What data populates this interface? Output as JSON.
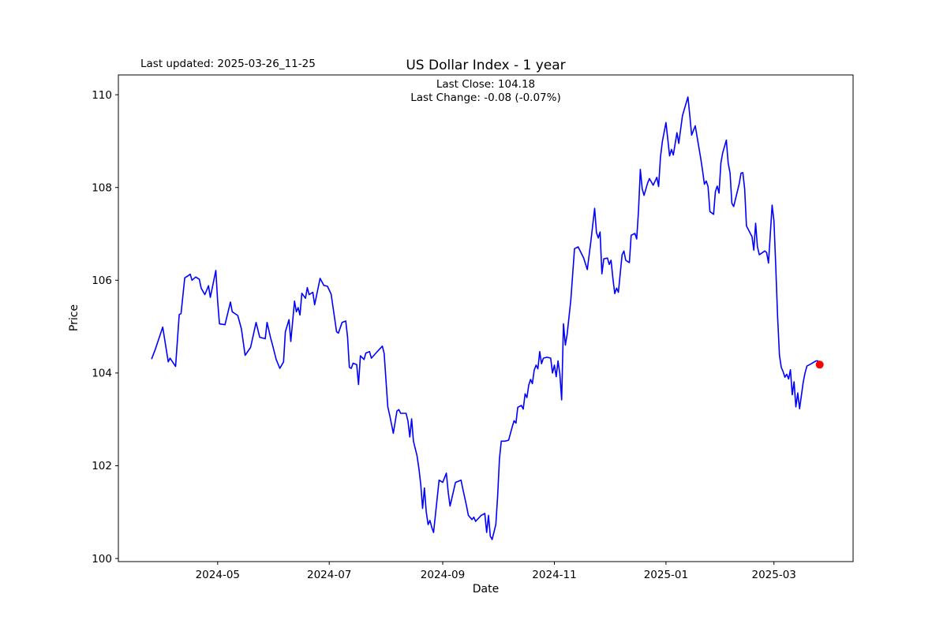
{
  "chart_data": {
    "type": "line",
    "title": "US Dollar Index - 1 year",
    "annotation_top_left": "Last updated: 2025-03-26_11-25",
    "subtitle_lines": [
      "Last Close: 104.18",
      "Last Change: -0.08 (-0.07%)"
    ],
    "last_close": 104.18,
    "last_change": "-0.08 (-0.07%)",
    "xlabel": "Date",
    "ylabel": "Price",
    "ylim_ticks": [
      100,
      110
    ],
    "grid": false,
    "legend": "none",
    "line_color": "#0000ff",
    "marker_color": "#ff0000",
    "yticks": [
      100,
      102,
      104,
      106,
      108,
      110
    ],
    "xticks": [
      {
        "date": "2024-05-01",
        "label": "2024-05"
      },
      {
        "date": "2024-07-01",
        "label": "2024-07"
      },
      {
        "date": "2024-09-01",
        "label": "2024-09"
      },
      {
        "date": "2024-11-01",
        "label": "2024-11"
      },
      {
        "date": "2025-01-01",
        "label": "2025-01"
      },
      {
        "date": "2025-03-01",
        "label": "2025-03"
      }
    ],
    "series": [
      {
        "name": "US Dollar Index",
        "points": [
          [
            "2024-03-26",
            104.31
          ],
          [
            "2024-03-28",
            104.52
          ],
          [
            "2024-04-01",
            104.99
          ],
          [
            "2024-04-04",
            104.24
          ],
          [
            "2024-04-05",
            104.32
          ],
          [
            "2024-04-08",
            104.14
          ],
          [
            "2024-04-10",
            105.26
          ],
          [
            "2024-04-11",
            105.28
          ],
          [
            "2024-04-13",
            106.05
          ],
          [
            "2024-04-15",
            106.1
          ],
          [
            "2024-04-16",
            106.13
          ],
          [
            "2024-04-17",
            106.0
          ],
          [
            "2024-04-19",
            106.07
          ],
          [
            "2024-04-21",
            106.02
          ],
          [
            "2024-04-22",
            105.83
          ],
          [
            "2024-04-24",
            105.69
          ],
          [
            "2024-04-26",
            105.88
          ],
          [
            "2024-04-27",
            105.63
          ],
          [
            "2024-04-30",
            106.21
          ],
          [
            "2024-05-01",
            105.55
          ],
          [
            "2024-05-02",
            105.06
          ],
          [
            "2024-05-05",
            105.04
          ],
          [
            "2024-05-08",
            105.53
          ],
          [
            "2024-05-09",
            105.32
          ],
          [
            "2024-05-12",
            105.24
          ],
          [
            "2024-05-14",
            104.95
          ],
          [
            "2024-05-16",
            104.38
          ],
          [
            "2024-05-19",
            104.55
          ],
          [
            "2024-05-22",
            105.09
          ],
          [
            "2024-05-24",
            104.77
          ],
          [
            "2024-05-27",
            104.74
          ],
          [
            "2024-05-28",
            105.09
          ],
          [
            "2024-05-30",
            104.75
          ],
          [
            "2024-05-31",
            104.6
          ],
          [
            "2024-06-02",
            104.29
          ],
          [
            "2024-06-04",
            104.1
          ],
          [
            "2024-06-06",
            104.24
          ],
          [
            "2024-06-07",
            104.89
          ],
          [
            "2024-06-09",
            105.15
          ],
          [
            "2024-06-10",
            104.68
          ],
          [
            "2024-06-12",
            105.55
          ],
          [
            "2024-06-13",
            105.32
          ],
          [
            "2024-06-14",
            105.41
          ],
          [
            "2024-06-15",
            105.25
          ],
          [
            "2024-06-16",
            105.72
          ],
          [
            "2024-06-18",
            105.61
          ],
          [
            "2024-06-19",
            105.84
          ],
          [
            "2024-06-20",
            105.69
          ],
          [
            "2024-06-22",
            105.74
          ],
          [
            "2024-06-23",
            105.47
          ],
          [
            "2024-06-26",
            106.04
          ],
          [
            "2024-06-28",
            105.89
          ],
          [
            "2024-06-30",
            105.87
          ],
          [
            "2024-07-02",
            105.7
          ],
          [
            "2024-07-05",
            104.89
          ],
          [
            "2024-07-06",
            104.86
          ],
          [
            "2024-07-08",
            105.09
          ],
          [
            "2024-07-10",
            105.12
          ],
          [
            "2024-07-11",
            104.78
          ],
          [
            "2024-07-12",
            104.12
          ],
          [
            "2024-07-13",
            104.1
          ],
          [
            "2024-07-14",
            104.21
          ],
          [
            "2024-07-16",
            104.18
          ],
          [
            "2024-07-17",
            103.75
          ],
          [
            "2024-07-18",
            104.37
          ],
          [
            "2024-07-20",
            104.29
          ],
          [
            "2024-07-21",
            104.43
          ],
          [
            "2024-07-23",
            104.46
          ],
          [
            "2024-07-24",
            104.32
          ],
          [
            "2024-07-27",
            104.45
          ],
          [
            "2024-07-30",
            104.58
          ],
          [
            "2024-07-31",
            104.42
          ],
          [
            "2024-08-02",
            103.27
          ],
          [
            "2024-08-03",
            103.09
          ],
          [
            "2024-08-05",
            102.7
          ],
          [
            "2024-08-07",
            103.18
          ],
          [
            "2024-08-08",
            103.21
          ],
          [
            "2024-08-09",
            103.13
          ],
          [
            "2024-08-12",
            103.13
          ],
          [
            "2024-08-13",
            102.96
          ],
          [
            "2024-08-14",
            102.62
          ],
          [
            "2024-08-15",
            103.01
          ],
          [
            "2024-08-16",
            102.53
          ],
          [
            "2024-08-18",
            102.21
          ],
          [
            "2024-08-19",
            101.93
          ],
          [
            "2024-08-20",
            101.59
          ],
          [
            "2024-08-21",
            101.08
          ],
          [
            "2024-08-22",
            101.52
          ],
          [
            "2024-08-23",
            101.01
          ],
          [
            "2024-08-24",
            100.73
          ],
          [
            "2024-08-25",
            100.82
          ],
          [
            "2024-08-26",
            100.67
          ],
          [
            "2024-08-27",
            100.56
          ],
          [
            "2024-08-30",
            101.69
          ],
          [
            "2024-09-01",
            101.64
          ],
          [
            "2024-09-03",
            101.84
          ],
          [
            "2024-09-04",
            101.42
          ],
          [
            "2024-09-05",
            101.13
          ],
          [
            "2024-09-06",
            101.3
          ],
          [
            "2024-09-08",
            101.64
          ],
          [
            "2024-09-11",
            101.69
          ],
          [
            "2024-09-12",
            101.5
          ],
          [
            "2024-09-14",
            101.13
          ],
          [
            "2024-09-15",
            100.93
          ],
          [
            "2024-09-17",
            100.84
          ],
          [
            "2024-09-18",
            100.89
          ],
          [
            "2024-09-19",
            100.8
          ],
          [
            "2024-09-22",
            100.93
          ],
          [
            "2024-09-24",
            100.97
          ],
          [
            "2024-09-25",
            100.56
          ],
          [
            "2024-09-26",
            100.93
          ],
          [
            "2024-09-27",
            100.48
          ],
          [
            "2024-09-28",
            100.41
          ],
          [
            "2024-09-30",
            100.73
          ],
          [
            "2024-10-01",
            101.35
          ],
          [
            "2024-10-02",
            102.15
          ],
          [
            "2024-10-03",
            102.53
          ],
          [
            "2024-10-05",
            102.53
          ],
          [
            "2024-10-07",
            102.55
          ],
          [
            "2024-10-09",
            102.84
          ],
          [
            "2024-10-10",
            102.97
          ],
          [
            "2024-10-11",
            102.92
          ],
          [
            "2024-10-12",
            103.26
          ],
          [
            "2024-10-14",
            103.3
          ],
          [
            "2024-10-15",
            103.22
          ],
          [
            "2024-10-16",
            103.55
          ],
          [
            "2024-10-17",
            103.47
          ],
          [
            "2024-10-18",
            103.74
          ],
          [
            "2024-10-19",
            103.86
          ],
          [
            "2024-10-20",
            103.77
          ],
          [
            "2024-10-21",
            104.06
          ],
          [
            "2024-10-22",
            104.17
          ],
          [
            "2024-10-23",
            104.09
          ],
          [
            "2024-10-24",
            104.46
          ],
          [
            "2024-10-25",
            104.2
          ],
          [
            "2024-10-26",
            104.32
          ],
          [
            "2024-10-28",
            104.34
          ],
          [
            "2024-10-30",
            104.32
          ],
          [
            "2024-10-31",
            104.0
          ],
          [
            "2024-11-01",
            104.17
          ],
          [
            "2024-11-02",
            103.92
          ],
          [
            "2024-11-03",
            104.26
          ],
          [
            "2024-11-04",
            103.98
          ],
          [
            "2024-11-05",
            103.42
          ],
          [
            "2024-11-06",
            105.06
          ],
          [
            "2024-11-07",
            104.6
          ],
          [
            "2024-11-08",
            104.84
          ],
          [
            "2024-11-10",
            105.57
          ],
          [
            "2024-11-12",
            106.68
          ],
          [
            "2024-11-14",
            106.72
          ],
          [
            "2024-11-17",
            106.48
          ],
          [
            "2024-11-19",
            106.23
          ],
          [
            "2024-11-21",
            106.85
          ],
          [
            "2024-11-23",
            107.55
          ],
          [
            "2024-11-24",
            107.03
          ],
          [
            "2024-11-25",
            106.91
          ],
          [
            "2024-11-26",
            107.04
          ],
          [
            "2024-11-27",
            106.14
          ],
          [
            "2024-11-28",
            106.46
          ],
          [
            "2024-11-30",
            106.48
          ],
          [
            "2024-12-01",
            106.34
          ],
          [
            "2024-12-02",
            106.43
          ],
          [
            "2024-12-03",
            106.03
          ],
          [
            "2024-12-04",
            105.71
          ],
          [
            "2024-12-05",
            105.83
          ],
          [
            "2024-12-06",
            105.74
          ],
          [
            "2024-12-07",
            106.14
          ],
          [
            "2024-12-08",
            106.55
          ],
          [
            "2024-12-09",
            106.63
          ],
          [
            "2024-12-10",
            106.43
          ],
          [
            "2024-12-12",
            106.38
          ],
          [
            "2024-12-13",
            106.97
          ],
          [
            "2024-12-15",
            107.01
          ],
          [
            "2024-12-16",
            106.89
          ],
          [
            "2024-12-17",
            107.5
          ],
          [
            "2024-12-18",
            108.39
          ],
          [
            "2024-12-19",
            107.97
          ],
          [
            "2024-12-20",
            107.83
          ],
          [
            "2024-12-22",
            108.1
          ],
          [
            "2024-12-23",
            108.19
          ],
          [
            "2024-12-25",
            108.05
          ],
          [
            "2024-12-27",
            108.22
          ],
          [
            "2024-12-28",
            108.02
          ],
          [
            "2024-12-29",
            108.65
          ],
          [
            "2024-12-30",
            108.99
          ],
          [
            "2025-01-01",
            109.4
          ],
          [
            "2025-01-02",
            109.04
          ],
          [
            "2025-01-03",
            108.68
          ],
          [
            "2025-01-04",
            108.82
          ],
          [
            "2025-01-05",
            108.7
          ],
          [
            "2025-01-07",
            109.18
          ],
          [
            "2025-01-08",
            108.95
          ],
          [
            "2025-01-10",
            109.55
          ],
          [
            "2025-01-13",
            109.95
          ],
          [
            "2025-01-14",
            109.57
          ],
          [
            "2025-01-15",
            109.13
          ],
          [
            "2025-01-17",
            109.33
          ],
          [
            "2025-01-20",
            108.62
          ],
          [
            "2025-01-21",
            108.36
          ],
          [
            "2025-01-22",
            108.07
          ],
          [
            "2025-01-23",
            108.14
          ],
          [
            "2025-01-24",
            108.02
          ],
          [
            "2025-01-25",
            107.48
          ],
          [
            "2025-01-27",
            107.42
          ],
          [
            "2025-01-28",
            107.91
          ],
          [
            "2025-01-29",
            108.03
          ],
          [
            "2025-01-30",
            107.88
          ],
          [
            "2025-01-31",
            108.53
          ],
          [
            "2025-02-01",
            108.75
          ],
          [
            "2025-02-03",
            109.02
          ],
          [
            "2025-02-04",
            108.53
          ],
          [
            "2025-02-05",
            108.31
          ],
          [
            "2025-02-06",
            107.66
          ],
          [
            "2025-02-07",
            107.59
          ],
          [
            "2025-02-10",
            108.08
          ],
          [
            "2025-02-11",
            108.31
          ],
          [
            "2025-02-12",
            108.32
          ],
          [
            "2025-02-13",
            107.97
          ],
          [
            "2025-02-14",
            107.17
          ],
          [
            "2025-02-17",
            106.94
          ],
          [
            "2025-02-18",
            106.65
          ],
          [
            "2025-02-19",
            107.23
          ],
          [
            "2025-02-20",
            106.72
          ],
          [
            "2025-02-21",
            106.55
          ],
          [
            "2025-02-24",
            106.63
          ],
          [
            "2025-02-25",
            106.6
          ],
          [
            "2025-02-26",
            106.37
          ],
          [
            "2025-02-28",
            107.62
          ],
          [
            "2025-03-01",
            107.28
          ],
          [
            "2025-03-02",
            106.31
          ],
          [
            "2025-03-03",
            105.23
          ],
          [
            "2025-03-04",
            104.38
          ],
          [
            "2025-03-05",
            104.12
          ],
          [
            "2025-03-06",
            104.03
          ],
          [
            "2025-03-07",
            103.91
          ],
          [
            "2025-03-08",
            103.97
          ],
          [
            "2025-03-09",
            103.87
          ],
          [
            "2025-03-10",
            104.07
          ],
          [
            "2025-03-11",
            103.53
          ],
          [
            "2025-03-12",
            103.81
          ],
          [
            "2025-03-13",
            103.27
          ],
          [
            "2025-03-14",
            103.57
          ],
          [
            "2025-03-15",
            103.23
          ],
          [
            "2025-03-17",
            103.8
          ],
          [
            "2025-03-18",
            104.0
          ],
          [
            "2025-03-19",
            104.15
          ],
          [
            "2025-03-21",
            104.19
          ],
          [
            "2025-03-24",
            104.26
          ],
          [
            "2025-03-25",
            104.26
          ],
          [
            "2025-03-26",
            104.18
          ]
        ]
      }
    ]
  }
}
